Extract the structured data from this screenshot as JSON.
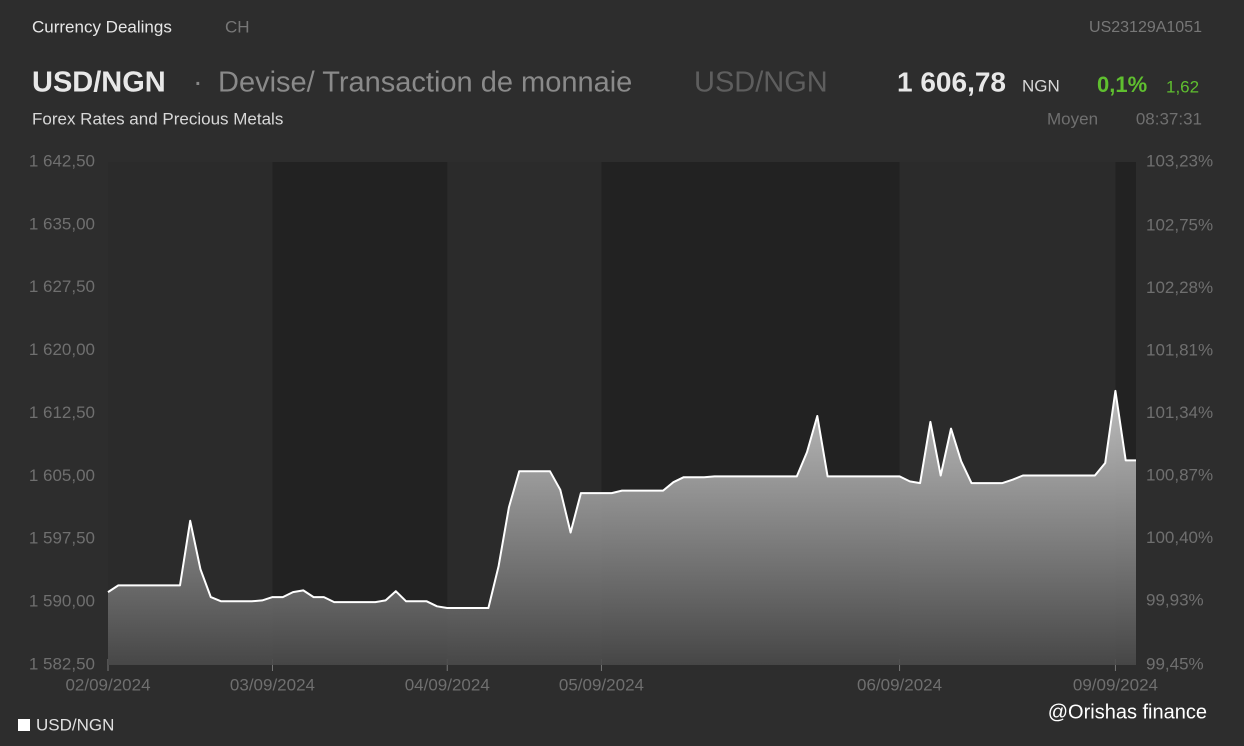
{
  "header": {
    "category": "Currency Dealings",
    "country": "CH",
    "isin": "US23129A1051",
    "symbol": "USD/NGN",
    "separator": "·",
    "description": "Devise/ Transaction de monnaie",
    "symbol_alt": "USD/NGN",
    "price": "1 606,78",
    "currency": "NGN",
    "change_pct": "0,1%",
    "change_abs": "1,62",
    "subtitle": "Forex Rates and Precious Metals",
    "quote_type": "Moyen",
    "time": "08:37:31",
    "watermark": "@Orishas finance"
  },
  "chart_data": {
    "type": "area",
    "xlim": [
      0,
      100
    ],
    "xticks": [
      {
        "value": 0,
        "label": "02/09/2024"
      },
      {
        "value": 16,
        "label": "03/09/2024"
      },
      {
        "value": 33,
        "label": "04/09/2024"
      },
      {
        "value": 48,
        "label": "05/09/2024"
      },
      {
        "value": 77,
        "label": "06/09/2024"
      },
      {
        "value": 98,
        "label": "09/09/2024"
      }
    ],
    "ylim": [
      1582.5,
      1642.5
    ],
    "yticks": [
      {
        "value": 1582.5,
        "label": "1 582,50"
      },
      {
        "value": 1590,
        "label": "1 590,00"
      },
      {
        "value": 1597.5,
        "label": "1 597,50"
      },
      {
        "value": 1605,
        "label": "1 605,00"
      },
      {
        "value": 1612.5,
        "label": "1 612,50"
      },
      {
        "value": 1620,
        "label": "1 620,00"
      },
      {
        "value": 1627.5,
        "label": "1 627,50"
      },
      {
        "value": 1635,
        "label": "1 635,00"
      },
      {
        "value": 1642.5,
        "label": "1 642,50"
      }
    ],
    "y2lim": [
      99.45,
      103.23
    ],
    "y2ticks": [
      {
        "value": 99.45,
        "label": "99,45%"
      },
      {
        "value": 99.93,
        "label": "99,93%"
      },
      {
        "value": 100.4,
        "label": "100,40%"
      },
      {
        "value": 100.87,
        "label": "100,87%"
      },
      {
        "value": 101.34,
        "label": "101,34%"
      },
      {
        "value": 101.81,
        "label": "101,81%"
      },
      {
        "value": 102.28,
        "label": "102,28%"
      },
      {
        "value": 102.75,
        "label": "102,75%"
      },
      {
        "value": 103.23,
        "label": "103,23%"
      }
    ],
    "legend": "bottom-left",
    "series": [
      {
        "name": "USD/NGN",
        "color": "#ffffff",
        "values": [
          1591.2,
          1592.0,
          1592.0,
          1592.0,
          1592.0,
          1592.0,
          1592.0,
          1592.0,
          1599.7,
          1593.9,
          1590.6,
          1590.1,
          1590.1,
          1590.1,
          1590.1,
          1590.2,
          1590.6,
          1590.6,
          1591.2,
          1591.4,
          1590.6,
          1590.6,
          1590.0,
          1590.0,
          1590.0,
          1590.0,
          1590.0,
          1590.2,
          1591.3,
          1590.1,
          1590.1,
          1590.1,
          1589.5,
          1589.3,
          1589.3,
          1589.3,
          1589.3,
          1589.3,
          1594.3,
          1601.3,
          1605.6,
          1605.6,
          1605.6,
          1605.6,
          1603.4,
          1598.3,
          1603.0,
          1603.0,
          1603.0,
          1603.0,
          1603.3,
          1603.3,
          1603.3,
          1603.3,
          1603.3,
          1604.3,
          1604.9,
          1604.9,
          1604.9,
          1605.0,
          1605.0,
          1605.0,
          1605.0,
          1605.0,
          1605.0,
          1605.0,
          1605.0,
          1605.0,
          1607.9,
          1612.2,
          1605.0,
          1605.0,
          1605.0,
          1605.0,
          1605.0,
          1605.0,
          1605.0,
          1605.0,
          1604.4,
          1604.2,
          1611.5,
          1605.1,
          1610.7,
          1606.8,
          1604.2,
          1604.2,
          1604.2,
          1604.2,
          1604.6,
          1605.1,
          1605.1,
          1605.1,
          1605.1,
          1605.1,
          1605.1,
          1605.1,
          1605.1,
          1606.6,
          1615.2,
          1606.9,
          1606.9
        ]
      }
    ]
  }
}
